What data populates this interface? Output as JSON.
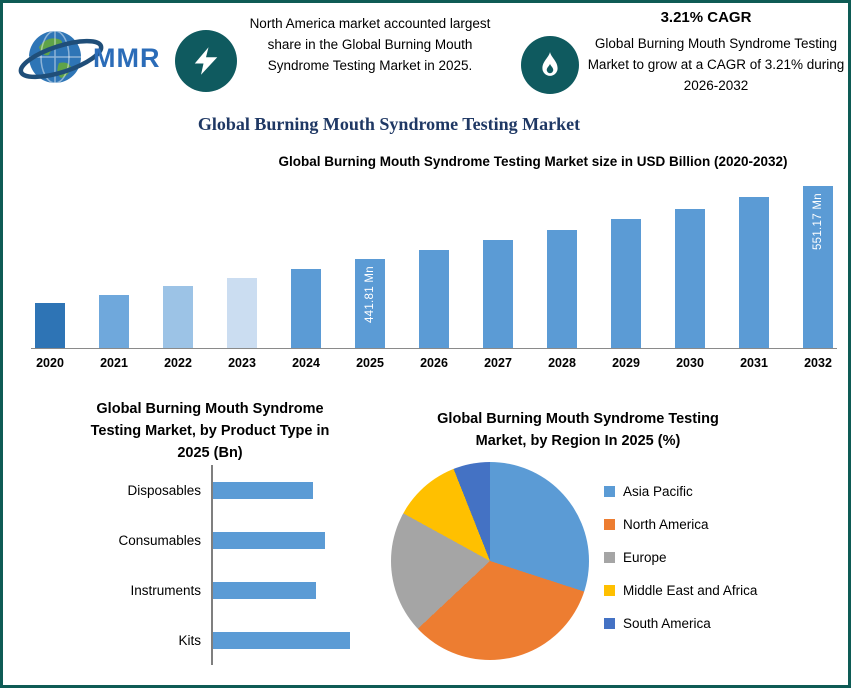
{
  "colors": {
    "border": "#0E5B55",
    "icon_circle": "#0F5A5F",
    "title": "#1F3864",
    "bar_blue": "#5B9BD5"
  },
  "header": {
    "logo_text": "MMR",
    "left_icon": "lightning-icon",
    "left_fact": "North America market accounted largest share in the Global Burning Mouth Syndrome Testing Market in 2025.",
    "cagr_headline": "3.21% CAGR",
    "right_icon": "flame-icon",
    "right_fact": "Global Burning Mouth Syndrome Testing Market to grow at a CAGR of 3.21% during 2026-2032"
  },
  "main_title": "Global Burning Mouth Syndrome Testing Market",
  "chart_data": [
    {
      "type": "bar",
      "title": "Global Burning Mouth Syndrome Testing Market size in USD Billion (2020-2032)",
      "categories": [
        "2020",
        "2021",
        "2022",
        "2023",
        "2024",
        "2025",
        "2026",
        "2027",
        "2028",
        "2029",
        "2030",
        "2031",
        "2032"
      ],
      "values": [
        377.3,
        389.4,
        401.9,
        414.8,
        428.1,
        441.81,
        456.0,
        470.6,
        485.7,
        501.3,
        517.4,
        534.0,
        551.17
      ],
      "unit": "Mn",
      "data_labels": {
        "2025": "441.81 Mn",
        "2032": "551.17 Mn"
      },
      "bar_colors": [
        "#2E74B5",
        "#6FA8DC",
        "#9CC3E6",
        "#CBDDF1",
        "#5B9BD5",
        "#5B9BD5",
        "#5B9BD5",
        "#5B9BD5",
        "#5B9BD5",
        "#5B9BD5",
        "#5B9BD5",
        "#5B9BD5",
        "#5B9BD5"
      ],
      "ylim": [
        310,
        560
      ],
      "gridlines": false
    },
    {
      "type": "bar",
      "orientation": "horizontal",
      "title": "Global Burning Mouth Syndrome Testing Market, by Product Type in 2025 (Bn)",
      "categories": [
        "Disposables",
        "Consumables",
        "Instruments",
        "Kits"
      ],
      "values": [
        0.1,
        0.112,
        0.103,
        0.137
      ],
      "xlim": [
        0,
        0.15
      ],
      "color": "#5B9BD5",
      "gridlines": false
    },
    {
      "type": "pie",
      "title": "Global Burning Mouth Syndrome Testing Market, by Region In 2025 (%)",
      "legend_position": "right",
      "slices": [
        {
          "label": "Asia Pacific",
          "value": 30,
          "color": "#5B9BD5"
        },
        {
          "label": "North America",
          "value": 33,
          "color": "#ED7D31"
        },
        {
          "label": "Europe",
          "value": 20,
          "color": "#A5A5A5"
        },
        {
          "label": "Middle East and Africa",
          "value": 11,
          "color": "#FFC000"
        },
        {
          "label": "South America",
          "value": 6,
          "color": "#4472C4"
        }
      ]
    }
  ]
}
